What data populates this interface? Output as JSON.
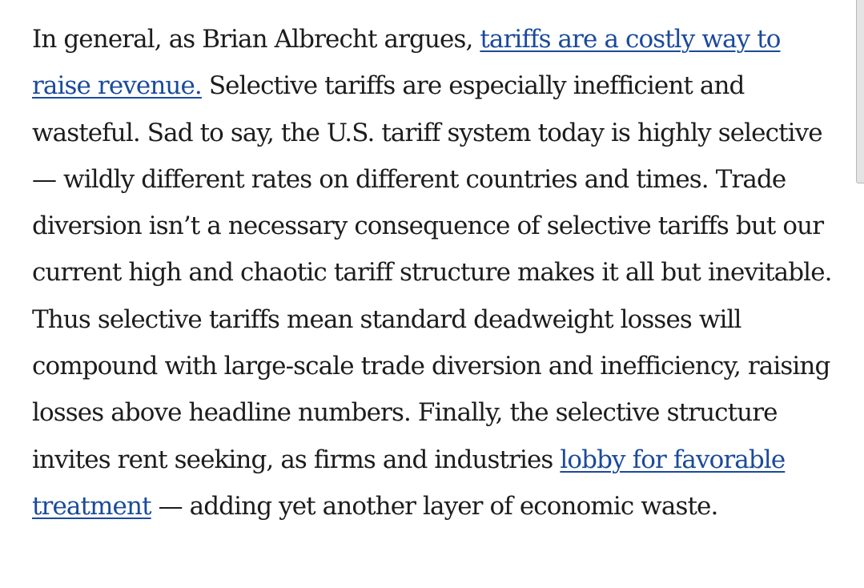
{
  "paragraph": {
    "part1": "In general, as Brian Albrecht argues, ",
    "link1": "tariffs are a costly way to raise revenue.",
    "part2": " Selective tariffs are especially inefficient and wasteful. Sad to say, the U.S. tariff system today is highly selective — wildly different rates on different countries and times. Trade diversion isn’t a necessary consequence of selective tariffs but our current high and chaotic tariff structure makes it all but inevitable. Thus selective tariffs mean standard deadweight losses will compound with large-scale trade diversion and inefficiency, raising losses above headline numbers. Finally, the selective structure invites rent seeking, as firms and industries ",
    "link2": "lobby for favorable treatment",
    "part3": " — adding yet another layer of economic waste."
  },
  "colors": {
    "text": "#1c1c1c",
    "link": "#1a4a9c",
    "background": "#ffffff"
  }
}
